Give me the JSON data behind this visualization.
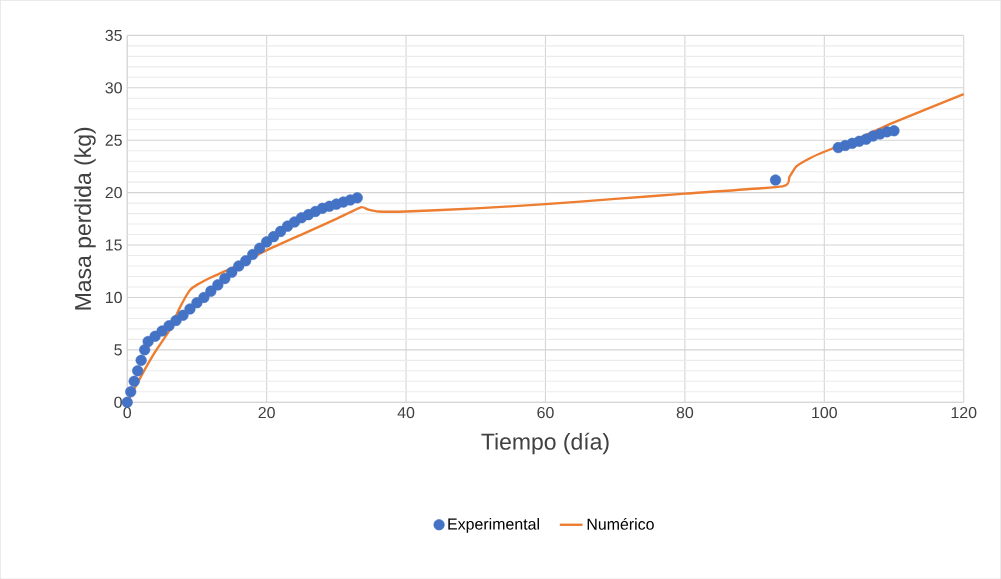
{
  "chart_data": {
    "type": "scatter",
    "xlabel": "Tiempo (día)",
    "ylabel": "Masa perdida (kg)",
    "xlim": [
      0,
      120
    ],
    "xticks": [
      0,
      20,
      40,
      60,
      80,
      100,
      120
    ],
    "ylim": [
      0,
      35
    ],
    "yticks": [
      0,
      5,
      10,
      15,
      20,
      25,
      30,
      35
    ],
    "grid": true,
    "legend": "bottom",
    "series": [
      {
        "name": "Experimental",
        "marker": "circle",
        "color": "#4472c4",
        "x": [
          0,
          0.5,
          1,
          1.5,
          2,
          2.5,
          3,
          4,
          5,
          6,
          7,
          8,
          9,
          10,
          11,
          12,
          13,
          14,
          15,
          16,
          17,
          18,
          19,
          20,
          21,
          22,
          23,
          24,
          25,
          26,
          27,
          28,
          29,
          30,
          31,
          32,
          33,
          93,
          102,
          103,
          104,
          105,
          106,
          107,
          108,
          109,
          110
        ],
        "values": [
          0,
          1,
          2,
          3,
          4,
          5,
          5.8,
          6.3,
          6.8,
          7.3,
          7.8,
          8.3,
          8.9,
          9.5,
          10,
          10.6,
          11.2,
          11.8,
          12.4,
          13,
          13.5,
          14.1,
          14.7,
          15.3,
          15.8,
          16.3,
          16.8,
          17.2,
          17.6,
          17.9,
          18.2,
          18.5,
          18.7,
          18.9,
          19.1,
          19.3,
          19.5,
          21.2,
          24.3,
          24.5,
          24.7,
          24.9,
          25.1,
          25.4,
          25.6,
          25.8,
          25.9
        ]
      },
      {
        "name": "Numérico",
        "type": "line",
        "marker": "none",
        "color": "#ed7d31",
        "x": [
          0,
          2,
          4,
          6,
          7.6,
          9,
          10,
          12,
          15,
          20,
          25,
          30,
          33.5,
          34.5,
          36,
          40,
          50,
          60,
          70,
          80,
          94,
          95,
          96,
          98,
          100,
          105,
          110,
          120
        ],
        "values": [
          0,
          2.5,
          4.8,
          6.8,
          9.1,
          10.7,
          11.2,
          11.9,
          12.8,
          14.5,
          16,
          17.5,
          18.6,
          18.4,
          18.2,
          18.2,
          18.5,
          18.9,
          19.4,
          19.9,
          20.6,
          21.5,
          22.5,
          23.3,
          23.9,
          25.2,
          26.7,
          29.4
        ]
      }
    ]
  }
}
